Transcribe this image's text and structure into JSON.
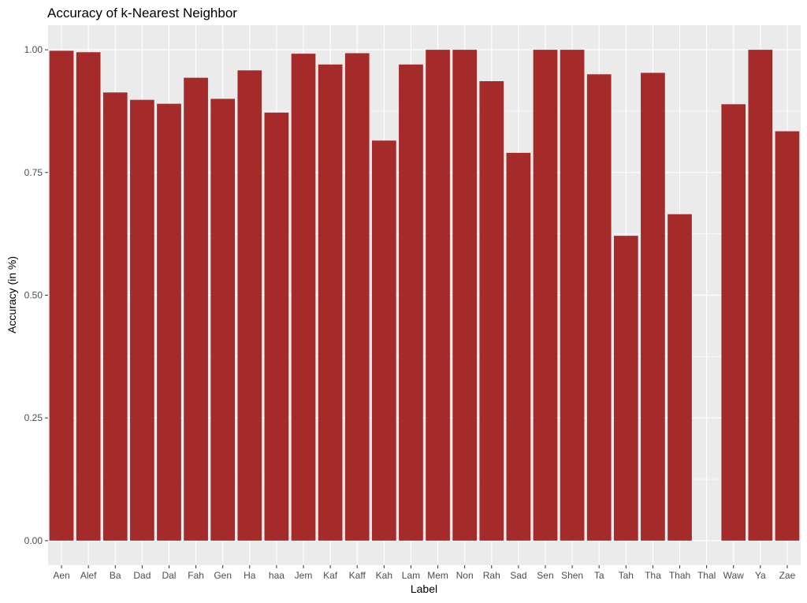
{
  "chart_data": {
    "type": "bar",
    "title": "Accuracy of k-Nearest Neighbor",
    "xlabel": "Label",
    "ylabel": "Accuracy (in %)",
    "categories": [
      "Aen",
      "Alef",
      "Ba",
      "Dad",
      "Dal",
      "Fah",
      "Gen",
      "Ha",
      "haa",
      "Jem",
      "Kaf",
      "Kaff",
      "Kah",
      "Lam",
      "Mem",
      "Non",
      "Rah",
      "Sad",
      "Sen",
      "Shen",
      "Ta",
      "Tah",
      "Tha",
      "Thah",
      "Thal",
      "Waw",
      "Ya",
      "Zae"
    ],
    "values": [
      0.998,
      0.995,
      0.913,
      0.898,
      0.89,
      0.943,
      0.9,
      0.958,
      0.872,
      0.992,
      0.97,
      0.993,
      0.815,
      0.97,
      1.0,
      1.0,
      0.936,
      0.79,
      1.0,
      1.0,
      0.95,
      0.621,
      0.953,
      0.665,
      0.0,
      0.889,
      1.0,
      0.834
    ],
    "ylim": [
      -0.05,
      1.05
    ],
    "yticks": [
      0.0,
      0.25,
      0.5,
      0.75,
      1.0
    ],
    "ytick_labels": [
      "0.00",
      "0.25",
      "0.50",
      "0.75",
      "1.00"
    ],
    "grid": true,
    "colors": {
      "bar": "#A52A2A",
      "panel": "#EBEBEB",
      "grid": "#FFFFFF"
    }
  }
}
